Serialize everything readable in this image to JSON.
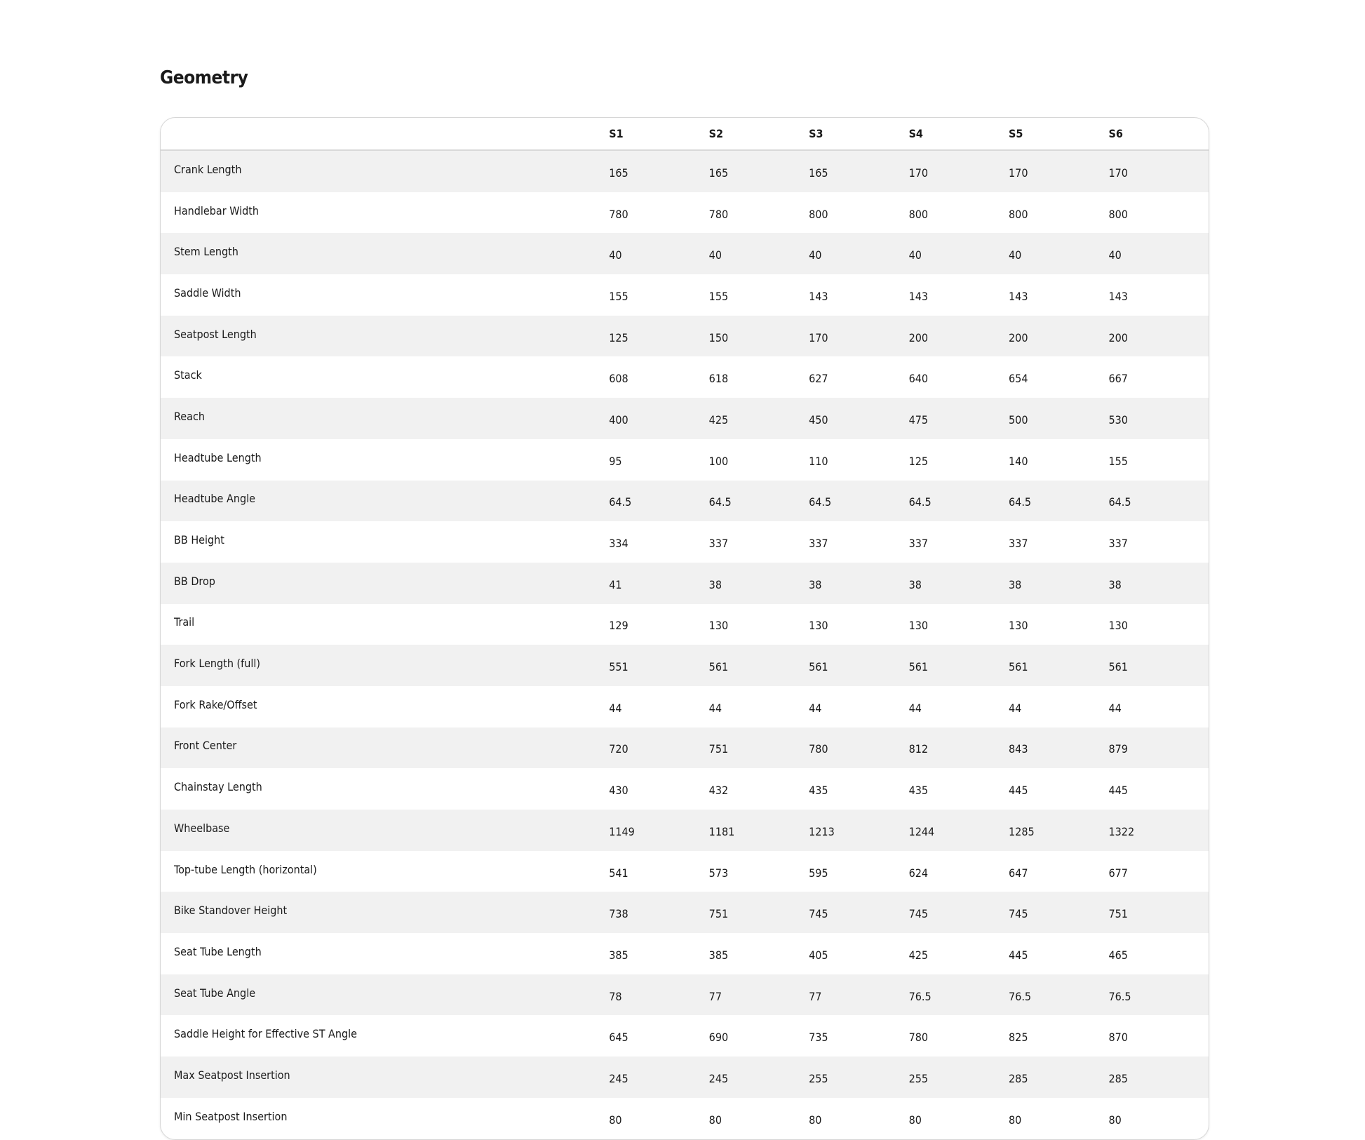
{
  "title": "Geometry",
  "columns": [
    "S1",
    "S2",
    "S3",
    "S4",
    "S5",
    "S6"
  ],
  "rows": [
    {
      "label": "Crank Length",
      "values": [
        "165",
        "165",
        "165",
        "170",
        "170",
        "170"
      ]
    },
    {
      "label": "Handlebar Width",
      "values": [
        "780",
        "780",
        "800",
        "800",
        "800",
        "800"
      ]
    },
    {
      "label": "Stem Length",
      "values": [
        "40",
        "40",
        "40",
        "40",
        "40",
        "40"
      ]
    },
    {
      "label": "Saddle Width",
      "values": [
        "155",
        "155",
        "143",
        "143",
        "143",
        "143"
      ]
    },
    {
      "label": "Seatpost Length",
      "values": [
        "125",
        "150",
        "170",
        "200",
        "200",
        "200"
      ]
    },
    {
      "label": "Stack",
      "values": [
        "608",
        "618",
        "627",
        "640",
        "654",
        "667"
      ]
    },
    {
      "label": "Reach",
      "values": [
        "400",
        "425",
        "450",
        "475",
        "500",
        "530"
      ]
    },
    {
      "label": "Headtube Length",
      "values": [
        "95",
        "100",
        "110",
        "125",
        "140",
        "155"
      ]
    },
    {
      "label": "Headtube Angle",
      "values": [
        "64.5",
        "64.5",
        "64.5",
        "64.5",
        "64.5",
        "64.5"
      ]
    },
    {
      "label": "BB Height",
      "values": [
        "334",
        "337",
        "337",
        "337",
        "337",
        "337"
      ]
    },
    {
      "label": "BB Drop",
      "values": [
        "41",
        "38",
        "38",
        "38",
        "38",
        "38"
      ]
    },
    {
      "label": "Trail",
      "values": [
        "129",
        "130",
        "130",
        "130",
        "130",
        "130"
      ]
    },
    {
      "label": "Fork Length (full)",
      "values": [
        "551",
        "561",
        "561",
        "561",
        "561",
        "561"
      ]
    },
    {
      "label": "Fork Rake/Offset",
      "values": [
        "44",
        "44",
        "44",
        "44",
        "44",
        "44"
      ]
    },
    {
      "label": "Front Center",
      "values": [
        "720",
        "751",
        "780",
        "812",
        "843",
        "879"
      ]
    },
    {
      "label": "Chainstay Length",
      "values": [
        "430",
        "432",
        "435",
        "435",
        "445",
        "445"
      ]
    },
    {
      "label": "Wheelbase",
      "values": [
        "1149",
        "1181",
        "1213",
        "1244",
        "1285",
        "1322"
      ]
    },
    {
      "label": "Top-tube Length (horizontal)",
      "values": [
        "541",
        "573",
        "595",
        "624",
        "647",
        "677"
      ]
    },
    {
      "label": "Bike Standover Height",
      "values": [
        "738",
        "751",
        "745",
        "745",
        "745",
        "751"
      ]
    },
    {
      "label": "Seat Tube Length",
      "values": [
        "385",
        "385",
        "405",
        "425",
        "445",
        "465"
      ]
    },
    {
      "label": "Seat Tube Angle",
      "values": [
        "78",
        "77",
        "77",
        "76.5",
        "76.5",
        "76.5"
      ]
    },
    {
      "label": "Saddle Height for Effective ST Angle",
      "values": [
        "645",
        "690",
        "735",
        "780",
        "825",
        "870"
      ]
    },
    {
      "label": "Max Seatpost Insertion",
      "values": [
        "245",
        "245",
        "255",
        "255",
        "285",
        "285"
      ]
    },
    {
      "label": "Min Seatpost Insertion",
      "values": [
        "80",
        "80",
        "80",
        "80",
        "80",
        "80"
      ]
    }
  ]
}
